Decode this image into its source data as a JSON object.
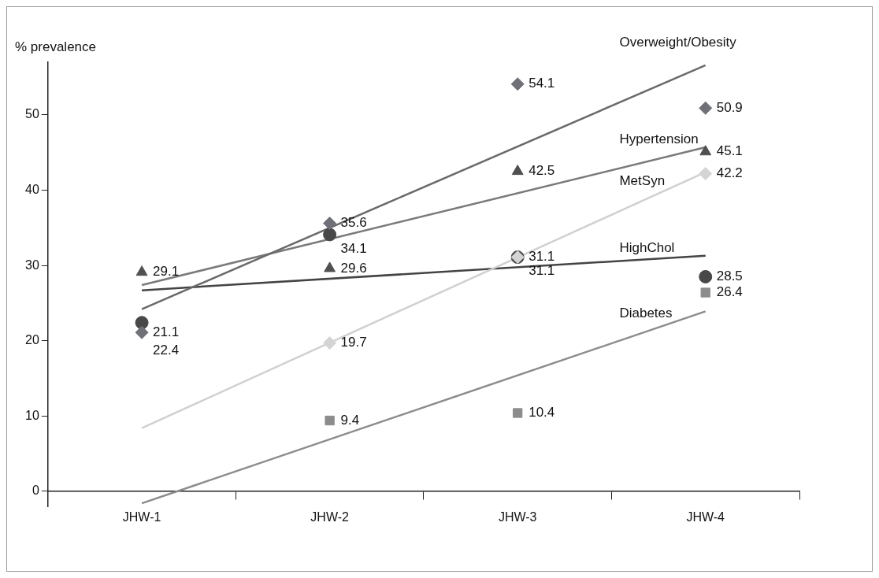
{
  "chart_data": {
    "type": "scatter",
    "ylabel": "% prevalence",
    "categories": [
      "JHW-1",
      "JHW-2",
      "JHW-3",
      "JHW-4"
    ],
    "ylim": [
      -2,
      57
    ],
    "yticks": [
      0,
      10,
      20,
      30,
      40,
      50
    ],
    "grid": false,
    "legend": false,
    "series": [
      {
        "marker": "diamond",
        "color": "#707078",
        "values": [
          21.1,
          35.6,
          54.1,
          50.9
        ],
        "value_labels": [
          "21.1",
          "35.6",
          "54.1",
          "50.9"
        ]
      },
      {
        "marker": "triangle",
        "color": "#505050",
        "values": [
          29.1,
          29.6,
          42.5,
          45.1
        ],
        "value_labels": [
          "29.1",
          "29.6",
          "42.5",
          "45.1"
        ]
      },
      {
        "marker": "diamond",
        "color": "#d4d4d4",
        "values": [
          null,
          19.7,
          31.1,
          42.2
        ],
        "value_labels": [
          null,
          "19.7",
          "31.1",
          "42.2"
        ]
      },
      {
        "marker": "circle",
        "color": "#484848",
        "values": [
          22.4,
          34.1,
          31.1,
          28.5
        ],
        "value_labels": [
          "22.4",
          "34.1",
          "31.1",
          "28.5"
        ]
      },
      {
        "marker": "square",
        "color": "#8c8c8c",
        "values": [
          null,
          9.4,
          10.4,
          26.4
        ],
        "value_labels": [
          null,
          "9.4",
          "10.4",
          "26.4"
        ]
      },
      {
        "type": "line",
        "name": "Overweight/Obesity",
        "color": "#6a6a6a",
        "x": [
          "JHW-1",
          "JHW-4"
        ],
        "values": [
          24.2,
          56.6
        ]
      },
      {
        "type": "line",
        "name": "Hypertension",
        "color": "#7a7a7a",
        "x": [
          "JHW-1",
          "JHW-4"
        ],
        "values": [
          27.4,
          45.7
        ]
      },
      {
        "type": "line",
        "name": "MetSyn",
        "color": "#d0d0d0",
        "x": [
          "JHW-1",
          "JHW-4"
        ],
        "values": [
          8.4,
          42.4
        ]
      },
      {
        "type": "line",
        "name": "HighChol",
        "color": "#444444",
        "x": [
          "JHW-1",
          "JHW-4"
        ],
        "values": [
          26.7,
          31.3
        ]
      },
      {
        "type": "line",
        "name": "Diabetes",
        "color": "#8c8c8c",
        "x": [
          "JHW-1",
          "JHW-4"
        ],
        "values": [
          -1.6,
          23.9
        ]
      }
    ]
  }
}
